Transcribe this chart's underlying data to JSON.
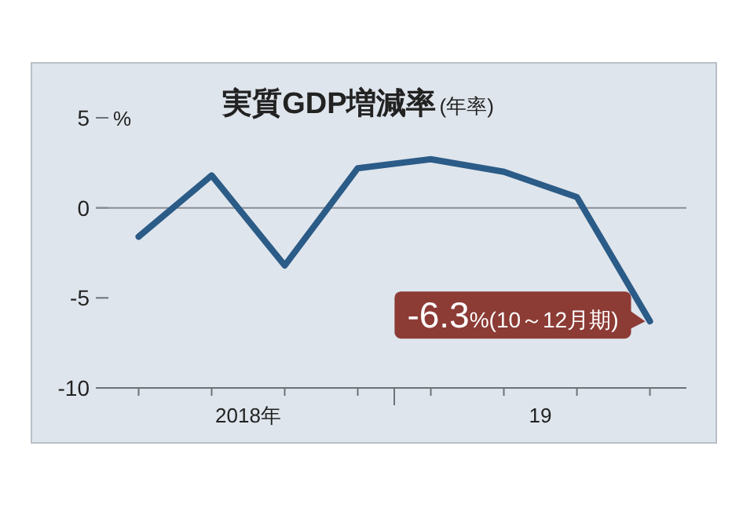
{
  "chart_data": {
    "type": "line",
    "title": "実質GDP増減率",
    "subtitle": "(年率)",
    "ylabel": "%",
    "categories": [
      null,
      null,
      null,
      null,
      null,
      null,
      null,
      null
    ],
    "series": [
      {
        "color": "#2b5b87",
        "values": [
          -1.6,
          1.8,
          -3.2,
          2.2,
          2.7,
          2.0,
          0.6,
          -6.3
        ]
      }
    ],
    "ylim": [
      -10,
      5
    ],
    "yticks": [
      5,
      0,
      -5,
      -10
    ],
    "ref_lines": [
      {
        "axis": "y",
        "value": 0,
        "color": "#8a8e94"
      }
    ],
    "annotations": [
      "2018年",
      "19",
      "-6.3%(10～12月期)"
    ],
    "grid": false,
    "marker": "none",
    "line_style": "solid"
  }
}
